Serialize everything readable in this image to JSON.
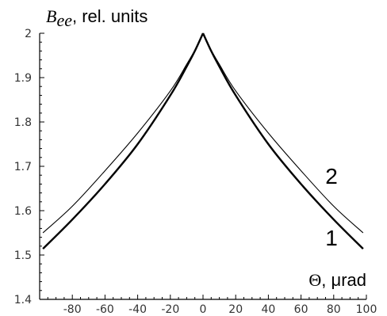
{
  "chart_data": {
    "type": "line",
    "title": "",
    "ylabel": {
      "symbol": "B",
      "subscript": "ee",
      "text": ", rel. units"
    },
    "xlabel": {
      "symbol": "Θ",
      "text": ", μrad"
    },
    "xlim": [
      -100,
      100
    ],
    "ylim": [
      1.4,
      2.0
    ],
    "grid": false,
    "x_ticks": [
      -80,
      -60,
      -40,
      -20,
      0,
      20,
      40,
      60,
      80,
      100
    ],
    "x_tick_labels": [
      "-80",
      "-60",
      "-40",
      "-20",
      "0",
      "20",
      "40",
      "60",
      "80",
      "100"
    ],
    "y_ticks": [
      1.4,
      1.5,
      1.6,
      1.7,
      1.8,
      1.9,
      2.0
    ],
    "y_tick_labels": [
      "1.4",
      "1.5",
      "1.6",
      "1.7",
      "1.8",
      "1.9",
      "2"
    ],
    "x": [
      -98,
      -80,
      -60,
      -40,
      -20,
      -10,
      -5,
      0,
      5,
      10,
      20,
      40,
      60,
      80,
      98
    ],
    "series": [
      {
        "name": "1",
        "color": "#000000",
        "values": [
          1.514,
          1.58,
          1.66,
          1.75,
          1.86,
          1.925,
          1.96,
          2.0,
          1.96,
          1.925,
          1.86,
          1.75,
          1.66,
          1.58,
          1.514
        ]
      },
      {
        "name": "2",
        "color": "#000000",
        "values": [
          1.55,
          1.61,
          1.69,
          1.775,
          1.87,
          1.93,
          1.962,
          2.0,
          1.962,
          1.93,
          1.87,
          1.775,
          1.69,
          1.61,
          1.55
        ]
      }
    ]
  }
}
